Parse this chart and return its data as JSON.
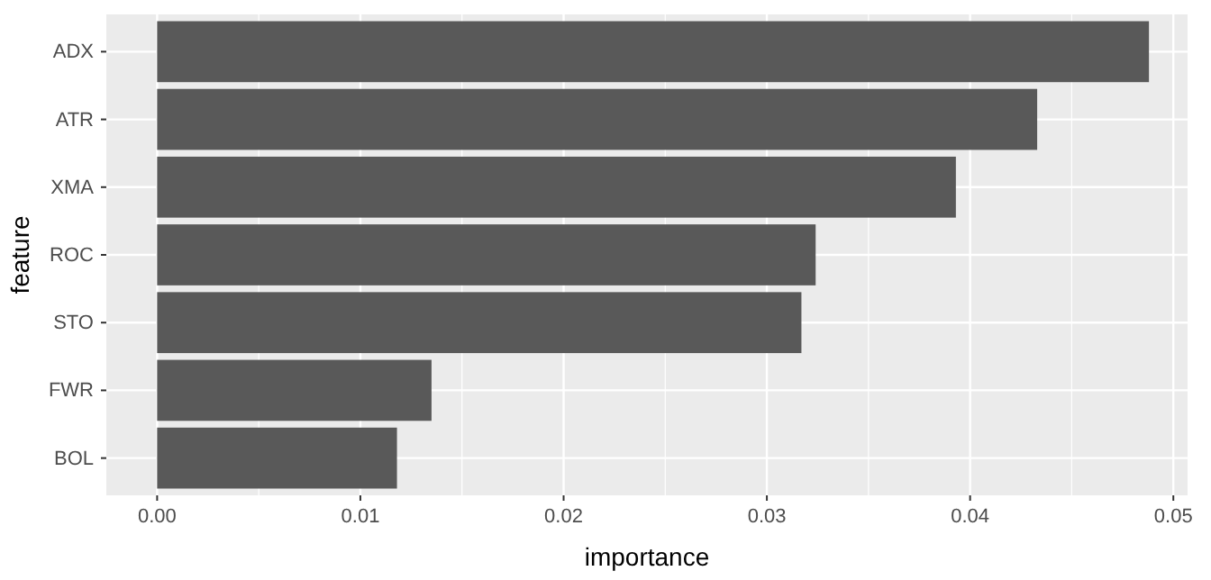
{
  "chart_data": {
    "type": "bar",
    "orientation": "horizontal",
    "xlabel": "importance",
    "ylabel": "feature",
    "categories": [
      "ADX",
      "ATR",
      "XMA",
      "ROC",
      "STO",
      "FWR",
      "BOL"
    ],
    "values": [
      0.0488,
      0.0433,
      0.0393,
      0.0324,
      0.0317,
      0.0135,
      0.0118
    ],
    "color": "#595959",
    "xlim": [
      -0.0025,
      0.0507
    ],
    "xticks": [
      {
        "value": 0,
        "label": "0.00"
      },
      {
        "value": 0.005,
        "label": null
      },
      0.01,
      {
        "value": 0.015,
        "label": null
      },
      0.02,
      {
        "value": 0.025,
        "label": null
      },
      0.03,
      {
        "value": 0.035,
        "label": null
      },
      0.04,
      {
        "value": 0.045,
        "label": null
      },
      0.05
    ],
    "grid": true
  }
}
